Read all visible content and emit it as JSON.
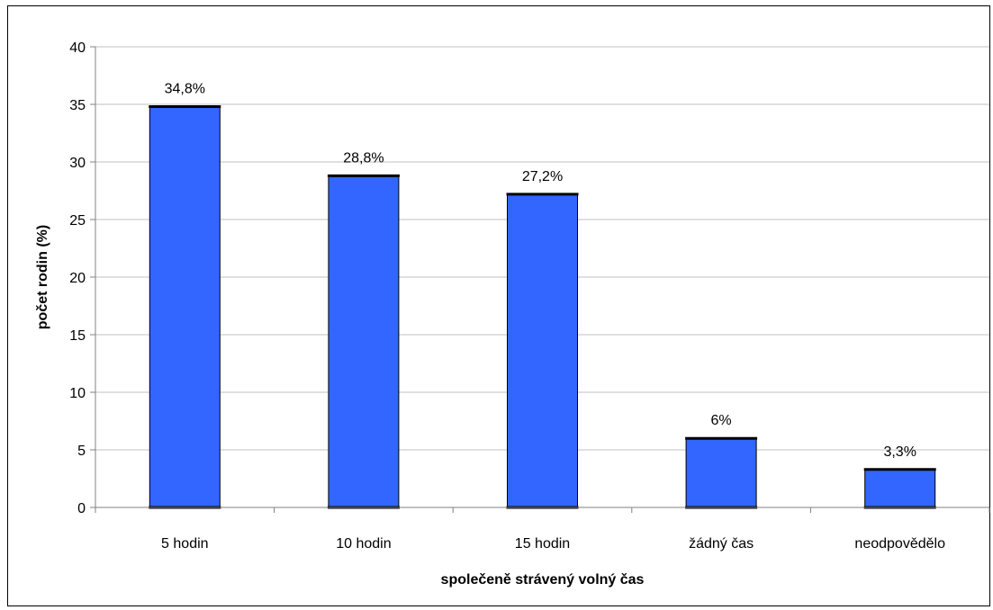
{
  "chart_data": {
    "type": "bar",
    "categories": [
      "5 hodin",
      "10 hodin",
      "15 hodin",
      "žádný čas",
      "neodpovědělo"
    ],
    "values": [
      34.8,
      28.8,
      27.2,
      6,
      3.3
    ],
    "data_labels": [
      "34,8%",
      "28,8%",
      "27,2%",
      "6%",
      "3,3%"
    ],
    "xlabel": "společeně strávený volný čas",
    "ylabel": "počet rodin (%)",
    "ylim": [
      0,
      40
    ],
    "yticks": [
      0,
      5,
      10,
      15,
      20,
      25,
      30,
      35,
      40
    ],
    "grid": true,
    "legend": "none",
    "colors": {
      "bar_fill": "#3366FF",
      "bar_stroke": "#000000",
      "grid": "#C0C0C0",
      "axis": "#808080"
    }
  }
}
